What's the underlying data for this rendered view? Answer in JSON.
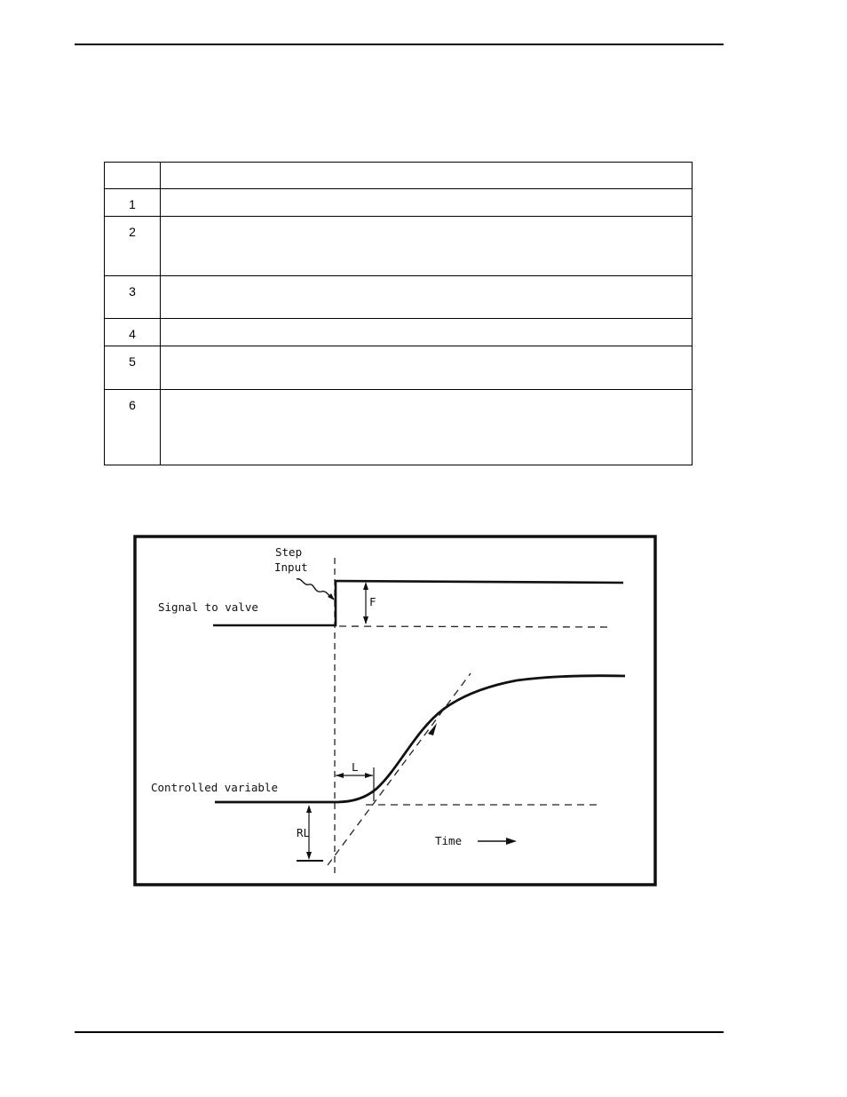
{
  "table": {
    "rows": [
      {
        "num": "",
        "text": ""
      },
      {
        "num": "1",
        "text": ""
      },
      {
        "num": "2",
        "text": ""
      },
      {
        "num": "3",
        "text": ""
      },
      {
        "num": "4",
        "text": ""
      },
      {
        "num": "5",
        "text": ""
      },
      {
        "num": "6",
        "text": ""
      }
    ]
  },
  "figure": {
    "step_label_line1": "Step",
    "step_label_line2": "Input",
    "signal_label": "Signal to valve",
    "f_label": "F",
    "l_label": "L",
    "controlled_label": "Controlled variable",
    "rl_label": "RL",
    "time_label": "Time"
  }
}
